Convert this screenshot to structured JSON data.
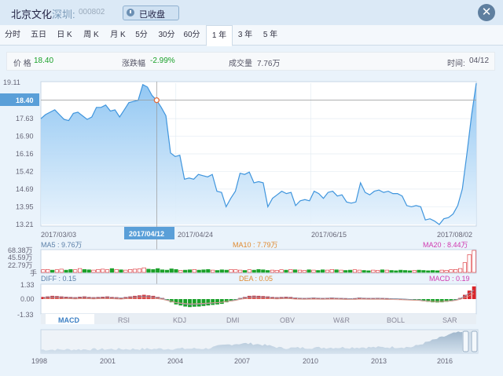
{
  "header": {
    "stock_name": "北京文化",
    "exchange": "深圳:",
    "code": "000802",
    "status": "已收盘"
  },
  "tabs": [
    "分时",
    "五日",
    "日 K",
    "周 K",
    "月 K",
    "5分",
    "30分",
    "60分",
    "1 年",
    "3 年",
    "5 年"
  ],
  "active_tab": "1 年",
  "info": {
    "price_label": "价 格",
    "price": "18.40",
    "change_label": "涨跌幅",
    "change": "-2.99%",
    "volume_label": "成交量",
    "volume": "7.76万",
    "time_label": "时间:",
    "time": "04/12"
  },
  "colors": {
    "up": "#d9252b",
    "down": "#1aa12a",
    "line": "#4d9de0",
    "fill": "#a9d2f5"
  },
  "price_chart": {
    "y_ticks": [
      "19.11",
      "18.40",
      "17.63",
      "16.90",
      "16.16",
      "15.42",
      "14.69",
      "13.95",
      "13.21"
    ],
    "x_dates": [
      "2017/03/03",
      "2017/04/24",
      "2017/06/15",
      "2017/08/02"
    ],
    "crosshair_date": "2017/04/12",
    "crosshair_price": "18.40",
    "ylim": [
      13.21,
      19.11
    ]
  },
  "chart_data": {
    "type": "line",
    "title": "",
    "xlabel": "",
    "ylabel": "",
    "ylim": [
      13.21,
      19.11
    ],
    "series": [
      {
        "values": [
          17.63,
          17.8,
          17.9,
          18.0,
          17.8,
          17.6,
          17.55,
          17.85,
          17.9,
          17.75,
          17.6,
          17.7,
          18.1,
          18.1,
          18.2,
          17.95,
          18.0,
          17.7,
          18.0,
          18.3,
          18.35,
          18.4,
          19.05,
          18.95,
          18.6,
          18.4,
          18.1,
          17.75,
          16.2,
          16.05,
          16.1,
          15.1,
          15.15,
          15.1,
          15.3,
          15.25,
          15.2,
          15.3,
          14.6,
          14.55,
          13.95,
          14.3,
          14.6,
          15.35,
          15.3,
          15.4,
          14.95,
          15.0,
          14.95,
          13.95,
          14.3,
          14.45,
          14.6,
          14.5,
          14.55,
          14.0,
          14.2,
          14.25,
          14.2,
          14.6,
          14.5,
          14.3,
          14.55,
          14.6,
          14.4,
          14.45,
          14.15,
          14.1,
          14.15,
          14.95,
          14.55,
          14.45,
          14.6,
          14.65,
          14.55,
          14.6,
          14.5,
          14.5,
          14.4,
          14.0,
          13.95,
          14.0,
          13.95,
          13.4,
          13.45,
          13.35,
          13.21,
          13.45,
          13.5,
          13.65,
          14.0,
          14.7,
          16.2,
          17.8,
          19.11
        ]
      }
    ]
  },
  "volume_chart": {
    "ma5_label": "MA5 : 9.76万",
    "ma10_label": "MA10 : 7.79万",
    "ma20_label": "MA20 : 8.44万",
    "y_ticks": [
      "68.38万",
      "45.59万",
      "22.79万",
      "手"
    ],
    "values": [
      8,
      9,
      7,
      8,
      10,
      7,
      9,
      8,
      12,
      9,
      8,
      7,
      9,
      10,
      8,
      12,
      9,
      8,
      7,
      9,
      10,
      11,
      14,
      10,
      9,
      12,
      8,
      7,
      11,
      9,
      6,
      7,
      8,
      9,
      7,
      8,
      9,
      7,
      6,
      8,
      7,
      9,
      8,
      7,
      6,
      8,
      7,
      9,
      8,
      6,
      7,
      6,
      8,
      7,
      9,
      8,
      7,
      6,
      8,
      7,
      6,
      8,
      7,
      9,
      8,
      7,
      6,
      7,
      8,
      7,
      6,
      5,
      7,
      6,
      8,
      7,
      6,
      5,
      7,
      6,
      5,
      6,
      7,
      6,
      5,
      6,
      5,
      7,
      6,
      8,
      9,
      12,
      30,
      55,
      68
    ],
    "up": [
      1,
      1,
      0,
      1,
      1,
      0,
      0,
      1,
      1,
      0,
      0,
      1,
      1,
      1,
      1,
      0,
      1,
      0,
      1,
      1,
      1,
      1,
      1,
      0,
      0,
      0,
      0,
      0,
      0,
      0,
      1,
      0,
      0,
      1,
      0,
      0,
      0,
      1,
      0,
      0,
      0,
      1,
      1,
      1,
      0,
      1,
      0,
      0,
      0,
      0,
      1,
      1,
      1,
      0,
      1,
      0,
      1,
      1,
      0,
      1,
      0,
      0,
      1,
      1,
      0,
      1,
      0,
      0,
      1,
      1,
      0,
      0,
      1,
      1,
      0,
      1,
      0,
      0,
      0,
      0,
      0,
      1,
      0,
      0,
      0,
      0,
      0,
      1,
      1,
      1,
      1,
      1,
      1,
      1,
      1
    ]
  },
  "macd_chart": {
    "diff_label": "DIFF : 0.15",
    "dea_label": "DEA : 0.05",
    "macd_label": "MACD : 0.19",
    "y_ticks": [
      "1.33",
      "0.00",
      "-1.33"
    ],
    "hist": [
      0.2,
      0.25,
      0.3,
      0.28,
      0.25,
      0.22,
      0.2,
      0.18,
      0.22,
      0.25,
      0.2,
      0.18,
      0.2,
      0.22,
      0.25,
      0.2,
      0.18,
      0.15,
      0.2,
      0.25,
      0.3,
      0.35,
      0.4,
      0.35,
      0.3,
      0.2,
      0.1,
      -0.1,
      -0.3,
      -0.5,
      -0.6,
      -0.7,
      -0.75,
      -0.72,
      -0.7,
      -0.65,
      -0.6,
      -0.55,
      -0.5,
      -0.45,
      -0.3,
      -0.2,
      -0.1,
      0.1,
      0.2,
      0.3,
      0.32,
      0.3,
      0.28,
      0.25,
      0.2,
      0.18,
      0.2,
      0.22,
      0.2,
      0.15,
      0.12,
      0.1,
      0.12,
      0.15,
      0.12,
      0.1,
      0.12,
      0.15,
      0.12,
      0.1,
      0.08,
      0.06,
      0.08,
      0.15,
      0.12,
      0.1,
      0.1,
      0.12,
      0.1,
      0.08,
      0.06,
      0.05,
      0.03,
      0.0,
      -0.05,
      -0.08,
      -0.1,
      -0.2,
      -0.25,
      -0.3,
      -0.32,
      -0.3,
      -0.25,
      -0.2,
      -0.1,
      0.1,
      0.4,
      0.8,
      1.2
    ]
  },
  "indicator_tabs": [
    "MACD",
    "RSI",
    "KDJ",
    "DMI",
    "OBV",
    "W&R",
    "BOLL",
    "SAR"
  ],
  "active_indicator": "MACD",
  "overview_years": [
    "1998",
    "2001",
    "2004",
    "2007",
    "2010",
    "2013",
    "2016"
  ]
}
